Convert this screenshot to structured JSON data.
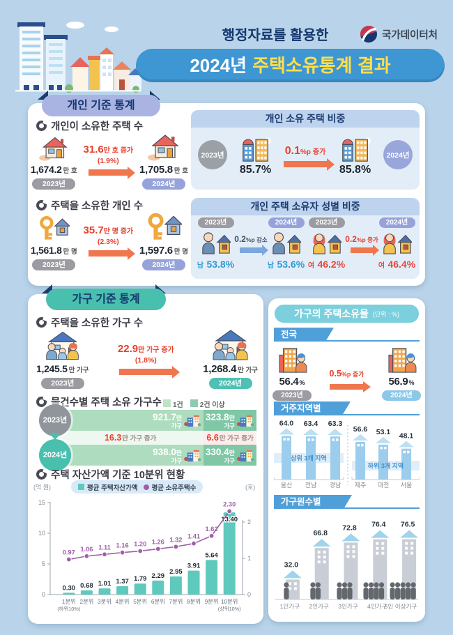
{
  "header": {
    "eyebrow": "행정자료를 활용한",
    "title_year": "2024년",
    "title_rest": "주택소유통계 결과",
    "agency": "국가데이터처"
  },
  "individual": {
    "badge": "개인 기준 통계",
    "homes": {
      "heading": "개인이 소유한 주택 수",
      "left": {
        "num": "1,674.2",
        "unit": "만 호",
        "year": "2023년"
      },
      "right": {
        "num": "1,705.8",
        "unit": "만 호",
        "year": "2024년"
      },
      "change": {
        "num": "31.6",
        "unit": "만 호 증가",
        "pct": "(1.9%)"
      }
    },
    "owners": {
      "heading": "주택을 소유한 개인 수",
      "left": {
        "num": "1,561.8",
        "unit": "만 명",
        "year": "2023년"
      },
      "right": {
        "num": "1,597.6",
        "unit": "만 명",
        "year": "2024년"
      },
      "change": {
        "num": "35.7",
        "unit": "만 명 증가",
        "pct": "(2.3%)"
      }
    },
    "share_panel": {
      "title": "개인 소유 주택 비중",
      "left_year": "2023년",
      "right_year": "2024년",
      "left_value": "85.7%",
      "right_value": "85.8%",
      "change": {
        "num": "0.1",
        "unit": "%p 증가"
      }
    },
    "gender_panel": {
      "title": "개인 주택 소유자 성별 비중",
      "male": {
        "left_year": "2023년",
        "right_year": "2024년",
        "label": "남",
        "left_value": "53.8%",
        "right_value": "53.6%",
        "change": {
          "num": "0.2",
          "unit": "%p 감소"
        }
      },
      "female": {
        "left_year": "2023년",
        "right_year": "2024년",
        "label": "여",
        "left_value": "46.2%",
        "right_value": "46.4%",
        "change": {
          "num": "0.2",
          "unit": "%p 증가"
        }
      }
    }
  },
  "household": {
    "badge": "가구 기준 통계",
    "owning": {
      "heading": "주택을 소유한 가구 수",
      "left": {
        "num": "1,245.5",
        "unit": "만 가구",
        "year": "2023년"
      },
      "right": {
        "num": "1,268.4",
        "unit": "만 가구",
        "year": "2024년"
      },
      "change": {
        "num": "22.9",
        "unit": "만 가구 증가",
        "pct": "(1.8%)"
      }
    },
    "by_count": {
      "heading": "물건수별 주택 소유 가구수",
      "legend": [
        "1건",
        "2건 이상"
      ],
      "rows": [
        {
          "year": "2023년",
          "one_num": "921.7",
          "one_suffix": "만",
          "one_unit": "가구",
          "multi_num": "323.8",
          "multi_suffix": "만",
          "multi_unit": "가구"
        },
        {
          "year": "2024년",
          "one_num": "938.0",
          "one_suffix": "만",
          "one_unit": "가구",
          "multi_num": "330.4",
          "multi_suffix": "만",
          "multi_unit": "가구"
        }
      ],
      "one_change": {
        "num": "16.3",
        "unit": "만 가구 증가"
      },
      "multi_change": {
        "num": "6.6",
        "unit": "만 가구 증가"
      }
    },
    "decile_heading": "주택 자산가액 기준 10분위 현황"
  },
  "ownership": {
    "title": "가구의 주택소유율",
    "unit_note": "(단위 : %)",
    "national": {
      "band": "전국",
      "left": {
        "num": "56.4",
        "pct": "%",
        "year": "2023년"
      },
      "right": {
        "num": "56.9",
        "pct": "%",
        "year": "2024년"
      },
      "change": {
        "num": "0.5",
        "unit": "%p 증가"
      }
    },
    "region_band": "거주지역별",
    "size_band": "가구원수별"
  },
  "chart_data": [
    {
      "id": "decile",
      "type": "bar",
      "title": "주택 자산가액 기준 10분위 현황",
      "categories": [
        "1분위",
        "2분위",
        "3분위",
        "4분위",
        "5분위",
        "6분위",
        "7분위",
        "8분위",
        "9분위",
        "10분위"
      ],
      "category_notes": {
        "0": "(하위10%)",
        "9": "(상위10%)"
      },
      "series": [
        {
          "name": "평균 주택자산가액",
          "kind": "bar",
          "unit": "억 원",
          "color": "#5fc9bd",
          "values": [
            "0.30",
            "0.68",
            "1.01",
            "1.37",
            "1.79",
            "2.29",
            "2.95",
            "3.91",
            "5.64",
            "13.40"
          ]
        },
        {
          "name": "평균 소유주택수",
          "kind": "line",
          "unit": "호",
          "color": "#a05fa8",
          "values": [
            "0.97",
            "1.06",
            "1.11",
            "1.16",
            "1.20",
            "1.26",
            "1.32",
            "1.41",
            "1.62",
            "2.30"
          ]
        }
      ],
      "left_axis": {
        "label": "(억 원)",
        "ticks": [
          0,
          5,
          10,
          15
        ]
      },
      "right_axis": {
        "label": "(호)",
        "ticks": [
          0,
          1,
          2
        ]
      },
      "legend_position": "top"
    },
    {
      "id": "by_region",
      "type": "bar",
      "title": "거주지역별",
      "unit": "%",
      "groups": [
        {
          "label": "상위 3개 지역",
          "categories": [
            "울산",
            "전남",
            "경남"
          ],
          "values": [
            "64.0",
            "63.4",
            "63.3"
          ]
        },
        {
          "label": "하위 3개 지역",
          "categories": [
            "제주",
            "대전",
            "서울"
          ],
          "values": [
            "56.6",
            "53.1",
            "48.1"
          ]
        }
      ]
    },
    {
      "id": "by_size",
      "type": "bar",
      "title": "가구원수별",
      "unit": "%",
      "categories": [
        "1인가구",
        "2인가구",
        "3인가구",
        "4인가구",
        "5인 이상가구"
      ],
      "values": [
        "32.0",
        "66.8",
        "72.8",
        "76.4",
        "76.5"
      ],
      "persons": [
        1,
        2,
        3,
        4,
        5
      ]
    }
  ]
}
